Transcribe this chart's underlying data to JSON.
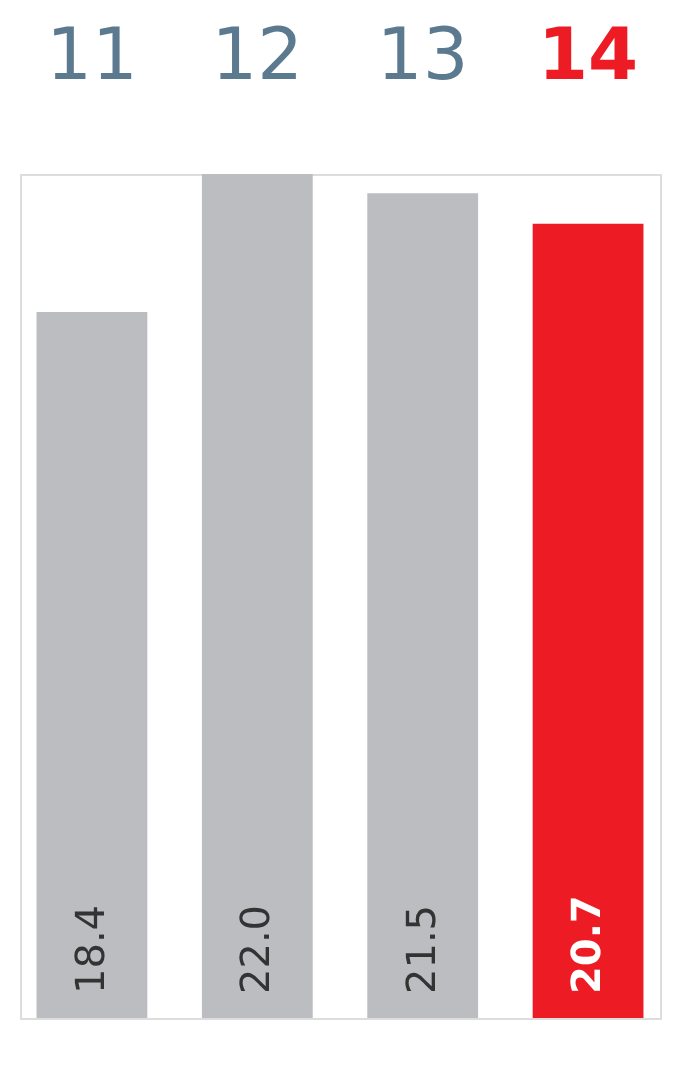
{
  "chart_data": {
    "type": "bar",
    "categories": [
      "11",
      "12",
      "13",
      "14"
    ],
    "values": [
      18.4,
      22.0,
      21.5,
      20.7
    ],
    "value_labels": [
      "18.4",
      "22.0",
      "21.5",
      "20.7"
    ],
    "colors": [
      "#bcbdc0",
      "#bcbdc0",
      "#bcbdc0",
      "#ed1c24"
    ]
  }
}
